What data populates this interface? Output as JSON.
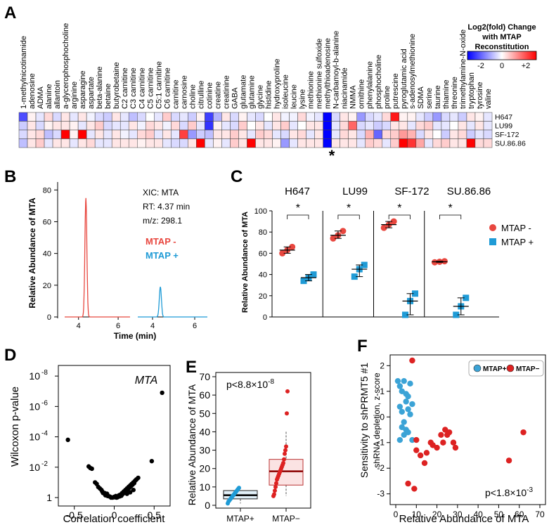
{
  "panel_labels": {
    "a": "A",
    "b": "B",
    "c": "C",
    "d": "D",
    "e": "E",
    "f": "F"
  },
  "chart_data": [
    {
      "id": "A",
      "type": "heatmap",
      "columns": [
        "1-methylnicotinamide",
        "adenosine",
        "ADMA",
        "alanine",
        "allantoin",
        "a-glycerophosphocholine",
        "arginine",
        "asparagine",
        "aspartate",
        "beta-alanine",
        "betaine",
        "butyrobetaine",
        "C2 carnitine",
        "C3 carnitine",
        "C4 carnitine",
        "C5 carnitine",
        "C5:1 carnitine",
        "C6 carnitine",
        "carnitine",
        "carnosine",
        "choline",
        "citrulline",
        "cotinine",
        "creatine",
        "creatinine",
        "GABA",
        "glutamate",
        "glutamine",
        "glycine",
        "histidine",
        "hydroxyproline",
        "isoleucine",
        "leucine",
        "lysine",
        "methionine",
        "methionine sulfoxide",
        "methylthioadenosine",
        "N-carbamoyl-b-alanine",
        "niacinamide",
        "NMMA",
        "ornithine",
        "phenylalanine",
        "phosphocholine",
        "proline",
        "putrescine",
        "pyroglutamic acid",
        "s-adenosylmethionine",
        "SDMA",
        "serine",
        "taurine",
        "thiamine",
        "threonine",
        "trimethylamine-N-oxide",
        "tryptophan",
        "tyrosine",
        "valine"
      ],
      "rows": [
        "H647",
        "LU99",
        "SF-172",
        "SU.86.86"
      ],
      "values": [
        [
          -1.4,
          0.1,
          -0.2,
          0.3,
          -0.3,
          0.2,
          -0.2,
          0.2,
          -0.1,
          -0.3,
          -0.4,
          0.2,
          -0.2,
          -0.5,
          -0.3,
          0.0,
          -0.2,
          0.4,
          -0.3,
          -0.2,
          -0.4,
          0.1,
          -1.5,
          -0.6,
          0.2,
          -0.3,
          0.1,
          -0.2,
          -0.3,
          0.0,
          0.2,
          -0.1,
          -0.1,
          0.3,
          -0.1,
          -0.2,
          -2.0,
          -0.3,
          0.2,
          0.1,
          -0.8,
          -0.3,
          -0.2,
          0.3,
          1.8,
          0.1,
          0.1,
          -0.2,
          -0.4,
          -0.8,
          -0.3,
          -0.2,
          -0.4,
          0.2,
          0.1,
          -0.2
        ],
        [
          -0.4,
          0.2,
          -0.3,
          0.1,
          0.2,
          0.2,
          0.1,
          -0.2,
          0.2,
          0.4,
          -0.3,
          -0.2,
          -0.2,
          0.2,
          -0.1,
          0.3,
          0.2,
          -0.1,
          0.3,
          -0.3,
          0.4,
          -0.2,
          -1.6,
          0.1,
          -0.2,
          -0.3,
          0.4,
          0.0,
          0.2,
          -0.2,
          0.2,
          0.4,
          -0.2,
          0.0,
          0.2,
          0.2,
          -2.0,
          -0.2,
          0.3,
          1.2,
          -0.3,
          -0.2,
          -0.4,
          -0.3,
          0.2,
          0.2,
          -0.2,
          0.3,
          0.4,
          -0.2,
          -0.2,
          0.0,
          0.2,
          -0.2,
          0.2,
          -0.2
        ],
        [
          -0.3,
          0.2,
          0.3,
          -0.5,
          -0.3,
          2.0,
          0.1,
          2.0,
          -0.2,
          0.2,
          -0.2,
          0.2,
          -0.1,
          -0.2,
          0.3,
          0.4,
          -0.2,
          0.2,
          -0.2,
          1.5,
          -0.8,
          -0.4,
          -0.5,
          0.2,
          0.2,
          0.4,
          0.2,
          -0.2,
          0.4,
          0.3,
          -0.2,
          -0.3,
          0.2,
          0.3,
          -0.2,
          0.2,
          -2.0,
          -0.2,
          0.3,
          0.2,
          -0.3,
          0.6,
          -1.2,
          0.3,
          0.4,
          0.8,
          0.6,
          -0.3,
          0.2,
          0.0,
          -0.4,
          0.2,
          0.3,
          -0.4,
          -0.2,
          -0.3
        ],
        [
          -0.5,
          0.2,
          0.4,
          -0.2,
          0.2,
          0.2,
          -0.2,
          0.2,
          0.3,
          -0.2,
          -0.2,
          0.2,
          0.2,
          0.2,
          0.1,
          0.2,
          0.2,
          -0.2,
          -0.3,
          -0.3,
          0.2,
          2.0,
          -0.2,
          0.1,
          -0.2,
          0.4,
          0.2,
          2.0,
          0.2,
          0.2,
          0.1,
          -0.8,
          -0.2,
          0.2,
          0.2,
          0.2,
          -2.0,
          0.2,
          0.2,
          0.2,
          -0.2,
          0.4,
          0.3,
          -0.2,
          0.4,
          2.0,
          1.6,
          0.7,
          -0.2,
          0.3,
          0.4,
          0.2,
          0.2,
          2.0,
          0.3,
          0.3
        ]
      ],
      "color_scale": {
        "min": -2,
        "max": 2,
        "low_color": "#0000ff",
        "mid_color": "#ffffff",
        "high_color": "#ff0000"
      },
      "legend_title": [
        "Log2(fold) Change",
        "with MTAP",
        "Reconstitution"
      ],
      "legend_ticks": [
        "-2",
        "0",
        "+2"
      ],
      "annotation": "*",
      "annotation_column": "methylthioadenosine"
    },
    {
      "id": "B",
      "type": "line",
      "ylabel": "Relative Abundance of MTA",
      "xlabel": "Time (min)",
      "y_ticks": [
        0,
        20,
        40,
        60,
        80
      ],
      "ylim": [
        0,
        85
      ],
      "x_ticks": [
        4,
        6
      ],
      "xlim": [
        3.3,
        6.6
      ],
      "info": [
        "XIC: MTA",
        "RT: 4.37 min",
        "m/z: 298.1"
      ],
      "series": [
        {
          "name": "MTAP -",
          "color": "#e8473f",
          "peak_time": 4.37,
          "peak_height": 75
        },
        {
          "name": "MTAP +",
          "color": "#1f9bd6",
          "peak_time": 4.37,
          "peak_height": 19
        }
      ]
    },
    {
      "id": "C",
      "type": "scatter",
      "ylabel": "Relative Abundance of MTA",
      "ylim": [
        0,
        100
      ],
      "y_ticks": [
        0,
        20,
        40,
        60,
        80,
        100
      ],
      "groups": [
        "H647",
        "LU99",
        "SF-172",
        "SU.86.86"
      ],
      "significance": [
        "*",
        "*",
        "*",
        "*"
      ],
      "series": [
        {
          "name": "MTAP -",
          "color": "#e8473f",
          "marker": "circle",
          "points": [
            [
              60,
              63,
              66
            ],
            [
              74,
              77,
              81
            ],
            [
              84,
              87,
              90
            ],
            [
              51.5,
              52,
              52.5
            ]
          ],
          "means": [
            63,
            77,
            87,
            52
          ]
        },
        {
          "name": "MTAP +",
          "color": "#1f9bd6",
          "marker": "square",
          "points": [
            [
              34,
              37,
              40
            ],
            [
              38,
              45,
              49
            ],
            [
              2,
              15,
              22
            ],
            [
              2,
              10,
              18
            ]
          ],
          "means": [
            37,
            45,
            15,
            10
          ]
        }
      ]
    },
    {
      "id": "D",
      "type": "scatter",
      "xlabel": "Correlation coefficient",
      "ylabel": "Wilcoxon p-value",
      "xlim": [
        -0.7,
        0.7
      ],
      "x_ticks": [
        -0.5,
        0,
        0.5
      ],
      "y_scale": "log-p",
      "y_tick_exponents": [
        0,
        -2,
        -4,
        -6,
        -8
      ],
      "y_tick_labels": [
        "1",
        "10",
        "10",
        "10",
        "10"
      ],
      "y_tick_superscripts": [
        "",
        "-2",
        "-4",
        "-6",
        "-8"
      ],
      "highlight": {
        "label": "MTA",
        "x": 0.6,
        "log10p": -6.9
      },
      "points": [
        [
          -0.58,
          -3.8
        ],
        [
          -0.32,
          -2.05
        ],
        [
          -0.3,
          -1.95
        ],
        [
          -0.28,
          -1.9
        ],
        [
          0.47,
          -2.4
        ],
        [
          0.6,
          -6.9
        ],
        [
          -0.22,
          -0.9
        ],
        [
          -0.18,
          -0.6
        ],
        [
          -0.15,
          -0.4
        ],
        [
          -0.12,
          -0.3
        ],
        [
          -0.1,
          -0.2
        ],
        [
          -0.08,
          -0.1
        ],
        [
          -0.05,
          -0.05
        ],
        [
          -0.02,
          0
        ],
        [
          0.0,
          -0.05
        ],
        [
          0.02,
          -0.1
        ],
        [
          0.04,
          -0.02
        ],
        [
          0.06,
          -0.15
        ],
        [
          0.08,
          -0.2
        ],
        [
          0.1,
          -0.3
        ],
        [
          0.12,
          -0.4
        ],
        [
          0.14,
          -0.5
        ],
        [
          0.16,
          -0.6
        ],
        [
          0.18,
          -0.7
        ],
        [
          0.2,
          -0.8
        ],
        [
          0.22,
          -0.9
        ],
        [
          0.24,
          -1.0
        ],
        [
          0.26,
          -1.1
        ],
        [
          0.28,
          -1.2
        ],
        [
          -0.2,
          -0.7
        ],
        [
          -0.16,
          -0.5
        ],
        [
          -0.06,
          -0.08
        ],
        [
          0.03,
          0
        ],
        [
          0.05,
          -0.05
        ],
        [
          0.07,
          -0.08
        ],
        [
          0.09,
          -0.12
        ],
        [
          0.11,
          -0.25
        ],
        [
          0.13,
          -0.35
        ],
        [
          0.15,
          -0.45
        ],
        [
          0.17,
          -0.55
        ],
        [
          0.19,
          -0.65
        ],
        [
          0.21,
          -0.75
        ],
        [
          0.23,
          -0.85
        ],
        [
          -0.14,
          -0.3
        ],
        [
          -0.11,
          -0.15
        ],
        [
          -0.04,
          0
        ],
        [
          0.01,
          -0.02
        ],
        [
          0.25,
          -0.95
        ],
        [
          0.27,
          -1.15
        ],
        [
          0.3,
          -1.3
        ],
        [
          -0.24,
          -1.0
        ],
        [
          -0.09,
          -0.25
        ],
        [
          0.16,
          -0.25
        ],
        [
          0.2,
          -0.35
        ],
        [
          0.24,
          -0.5
        ]
      ]
    },
    {
      "id": "E",
      "type": "box",
      "ylabel": "Relative Abundance of MTA",
      "ylim": [
        0,
        70
      ],
      "y_ticks": [
        0,
        10,
        20,
        30,
        40,
        50,
        60,
        70
      ],
      "annotation": "p<8.8×10",
      "annotation_sup": "-8",
      "categories": [
        "MTAP+",
        "MTAP−"
      ],
      "boxes": [
        {
          "name": "MTAP+",
          "color": "#1f9bd6",
          "q1": 3.5,
          "median": 5.5,
          "q3": 8,
          "min": 1,
          "max": 10,
          "points": [
            1,
            2,
            2.5,
            3,
            3.5,
            4,
            4.5,
            5,
            5.5,
            6,
            6.5,
            7,
            7.5,
            8,
            8.5,
            9,
            9.5
          ]
        },
        {
          "name": "MTAP−",
          "color": "#dd2222",
          "q1": 11,
          "median": 18.5,
          "q3": 25,
          "min": 5,
          "max": 40,
          "points": [
            5,
            6,
            8,
            10,
            12,
            14,
            15,
            16,
            17,
            18,
            19,
            20,
            21,
            22,
            23,
            25,
            28,
            30,
            32,
            50,
            62
          ]
        }
      ]
    },
    {
      "id": "F",
      "type": "scatter",
      "xlabel": "Relative Abundance of MTA",
      "ylabel": [
        "Sensitivity to shPRMT5 #1",
        "shRNA depletion, z-score"
      ],
      "xlim": [
        0,
        70
      ],
      "x_ticks": [
        0,
        10,
        20,
        30,
        40,
        50,
        60,
        70
      ],
      "ylim": [
        -3.2,
        2.2
      ],
      "y_ticks": [
        -3,
        -2,
        -1,
        0,
        1,
        2
      ],
      "annotation": "p<1.8×10",
      "annotation_sup": "-3",
      "series": [
        {
          "name": "MTAP+",
          "color": "#3ba3d6",
          "points": [
            [
              1,
              1.4
            ],
            [
              2,
              1.2
            ],
            [
              3,
              1.0
            ],
            [
              4,
              1.4
            ],
            [
              5,
              0.6
            ],
            [
              6,
              0.8
            ],
            [
              7,
              1.3
            ],
            [
              8,
              0.5
            ],
            [
              2,
              0.4
            ],
            [
              3,
              0.2
            ],
            [
              4,
              -0.2
            ],
            [
              5,
              -0.5
            ],
            [
              6,
              0.3
            ],
            [
              7,
              0.1
            ],
            [
              2,
              -0.9
            ],
            [
              3,
              -0.4
            ],
            [
              4,
              -0.7
            ],
            [
              6,
              -0.6
            ],
            [
              8,
              -0.9
            ],
            [
              5,
              0.9
            ]
          ]
        },
        {
          "name": "MTAP−",
          "color": "#dd2222",
          "points": [
            [
              8,
              2.2
            ],
            [
              6,
              -2.6
            ],
            [
              9,
              -2.8
            ],
            [
              10,
              -1.3
            ],
            [
              12,
              -1.5
            ],
            [
              14,
              -1.8
            ],
            [
              15,
              -1.4
            ],
            [
              17,
              -1.0
            ],
            [
              18,
              -1.1
            ],
            [
              20,
              -1.2
            ],
            [
              22,
              -0.7
            ],
            [
              23,
              -1.0
            ],
            [
              24,
              -0.5
            ],
            [
              25,
              -0.7
            ],
            [
              26,
              -0.6
            ],
            [
              28,
              -1.0
            ],
            [
              29,
              -1.2
            ],
            [
              55,
              -1.7
            ],
            [
              62,
              -0.6
            ],
            [
              10,
              -0.9
            ]
          ]
        }
      ]
    }
  ]
}
